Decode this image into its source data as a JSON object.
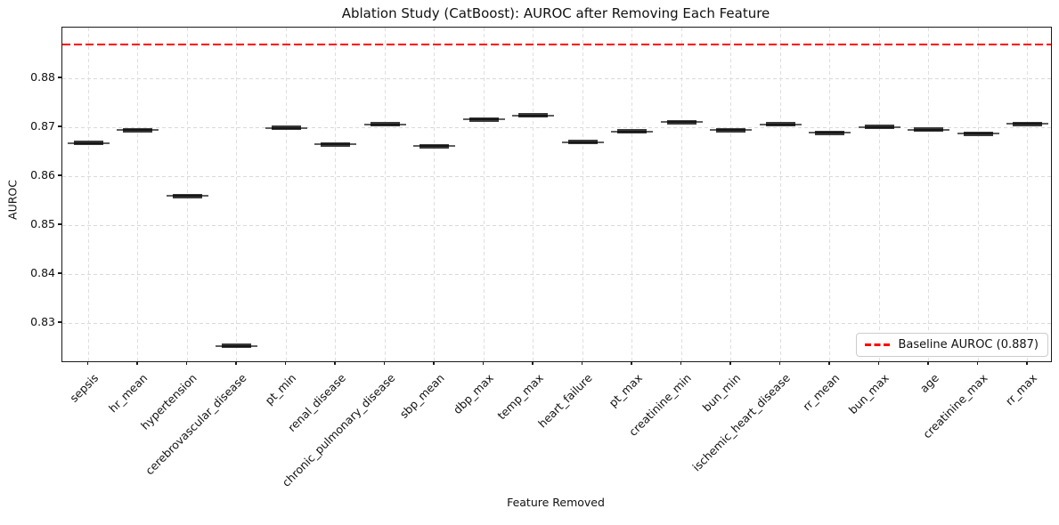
{
  "chart_data": {
    "type": "boxplot",
    "title": "Ablation Study (CatBoost): AUROC after Removing Each Feature",
    "xlabel": "Feature Removed",
    "ylabel": "AUROC",
    "categories": [
      "sepsis",
      "hr_mean",
      "hypertension",
      "cerebrovascular_disease",
      "pt_min",
      "renal_disease",
      "chronic_pulmonary_disease",
      "sbp_mean",
      "dbp_max",
      "temp_max",
      "heart_failure",
      "pt_max",
      "creatinine_min",
      "bun_min",
      "ischemic_heart_disease",
      "rr_mean",
      "bun_max",
      "age",
      "creatinine_max",
      "rr_max"
    ],
    "medians": [
      0.8668,
      0.8694,
      0.856,
      0.8253,
      0.8699,
      0.8665,
      0.8706,
      0.8662,
      0.8716,
      0.8724,
      0.867,
      0.8692,
      0.8711,
      0.8694,
      0.8706,
      0.8689,
      0.8701,
      0.8695,
      0.8687,
      0.8707
    ],
    "box_half_spread": 0.00045,
    "whisker_half_spread": 0.0008,
    "baseline": {
      "value": 0.887,
      "label": "Baseline AUROC (0.887)",
      "color": "#ff0000",
      "style": "dashed"
    },
    "ylim": [
      0.8222,
      0.8904
    ],
    "yticks": [
      0.83,
      0.84,
      0.85,
      0.86,
      0.87,
      0.88
    ],
    "grid": true,
    "legend_position": "lower right",
    "colors": {
      "box": "#3a3a3a",
      "median": "#161616",
      "whisker": "#5f5f5f",
      "grid": "#d9d9d9",
      "spine": "#1a1a1a",
      "baseline": "#ff0000",
      "background": "#ffffff"
    }
  }
}
